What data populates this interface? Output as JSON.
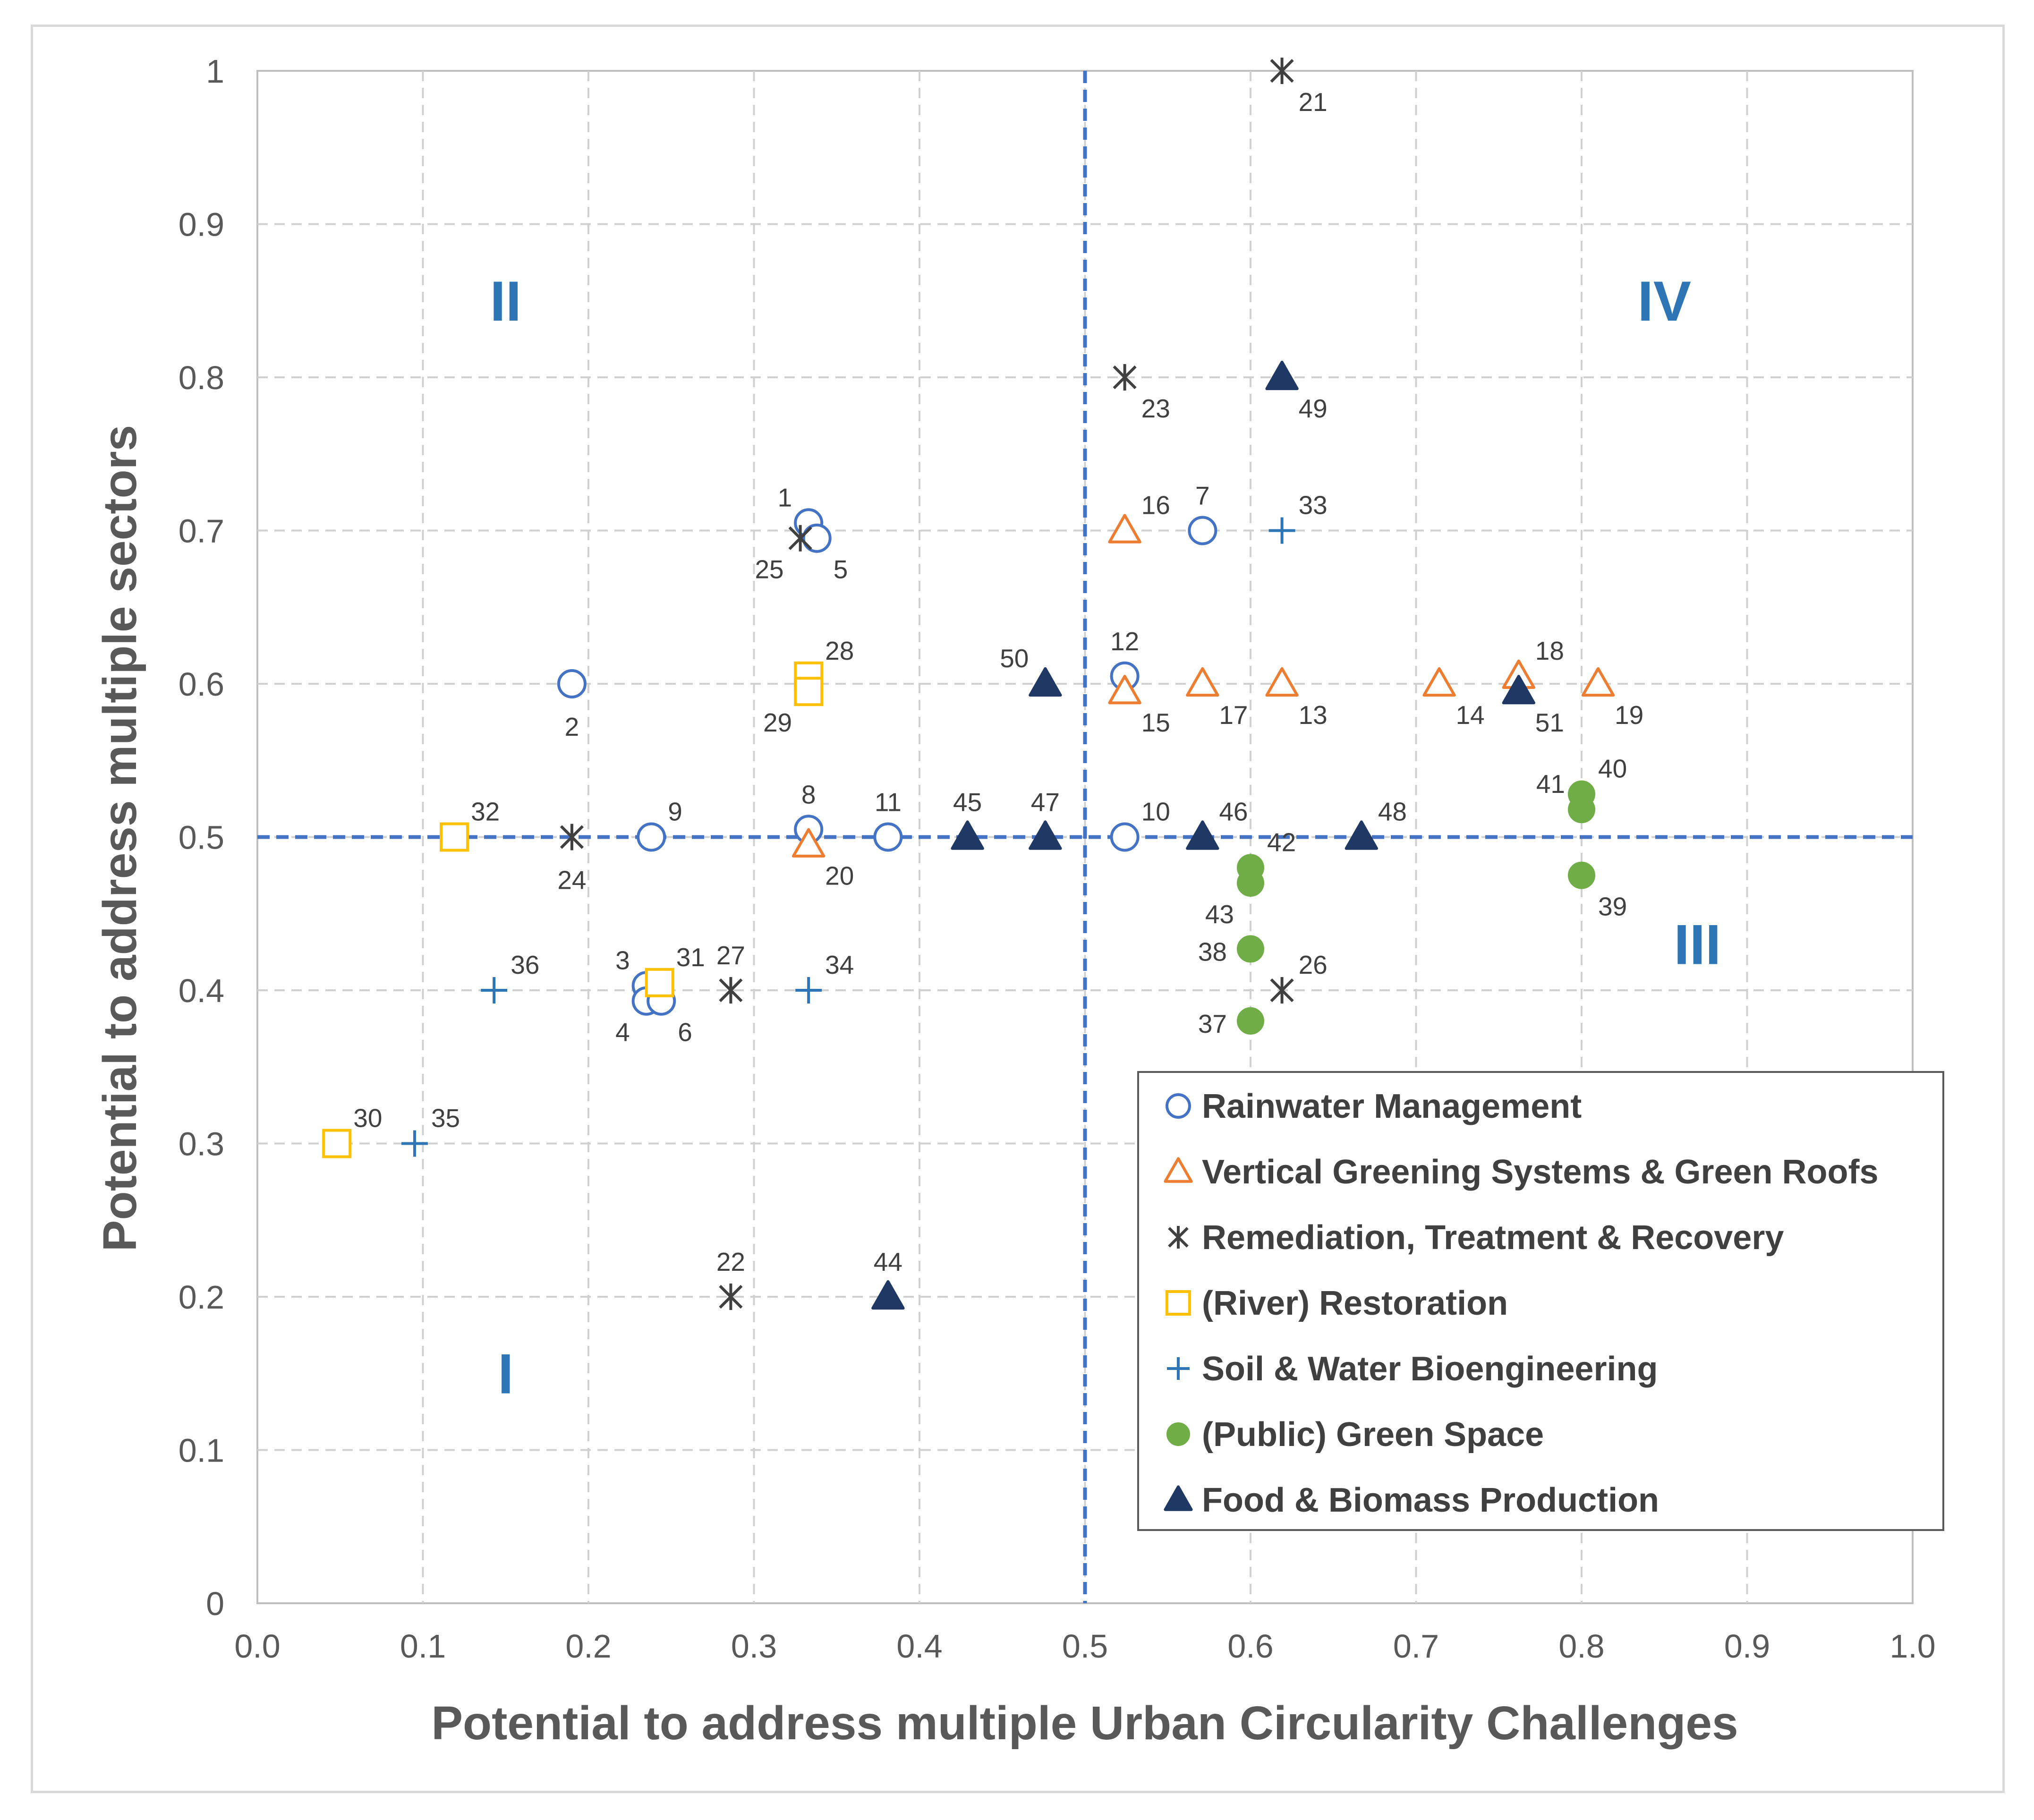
{
  "chart_data": {
    "type": "scatter",
    "title": "",
    "xlabel": "Potential to address multiple Urban Circularity Challenges",
    "ylabel": "Potential to address multiple sectors",
    "xlim": [
      0,
      1
    ],
    "ylim": [
      0,
      1
    ],
    "x_ticks": [
      "0.0",
      "0.1",
      "0.2",
      "0.3",
      "0.4",
      "0.5",
      "0.6",
      "0.7",
      "0.8",
      "0.9",
      "1.0"
    ],
    "y_ticks": [
      "0",
      "0.1",
      "0.2",
      "0.3",
      "0.4",
      "0.5",
      "0.6",
      "0.7",
      "0.8",
      "0.9",
      "1"
    ],
    "grid": true,
    "threshold_lines": {
      "x": 0.5,
      "y": 0.5
    },
    "quadrant_labels": [
      {
        "text": "I",
        "x": 0.15,
        "y": 0.15
      },
      {
        "text": "II",
        "x": 0.15,
        "y": 0.85
      },
      {
        "text": "III",
        "x": 0.87,
        "y": 0.43
      },
      {
        "text": "IV",
        "x": 0.85,
        "y": 0.85
      }
    ],
    "legend_position": "bottom-right",
    "series": [
      {
        "name": "Rainwater Management",
        "marker": "circle-open",
        "color": "#4472c4",
        "points": [
          {
            "id": "1",
            "x": 0.333,
            "y": 0.705
          },
          {
            "id": "2",
            "x": 0.19,
            "y": 0.6
          },
          {
            "id": "3",
            "x": 0.235,
            "y": 0.403
          },
          {
            "id": "4",
            "x": 0.235,
            "y": 0.393
          },
          {
            "id": "5",
            "x": 0.338,
            "y": 0.695
          },
          {
            "id": "6",
            "x": 0.244,
            "y": 0.393
          },
          {
            "id": "7",
            "x": 0.571,
            "y": 0.7
          },
          {
            "id": "8",
            "x": 0.333,
            "y": 0.505
          },
          {
            "id": "9",
            "x": 0.238,
            "y": 0.5
          },
          {
            "id": "10",
            "x": 0.524,
            "y": 0.5
          },
          {
            "id": "11",
            "x": 0.381,
            "y": 0.5
          },
          {
            "id": "12",
            "x": 0.524,
            "y": 0.605
          }
        ]
      },
      {
        "name": "Vertical Greening Systems & Green Roofs",
        "marker": "triangle-open",
        "color": "#ed7d31",
        "points": [
          {
            "id": "13",
            "x": 0.619,
            "y": 0.6
          },
          {
            "id": "14",
            "x": 0.714,
            "y": 0.6
          },
          {
            "id": "15",
            "x": 0.524,
            "y": 0.595
          },
          {
            "id": "16",
            "x": 0.524,
            "y": 0.7
          },
          {
            "id": "17",
            "x": 0.571,
            "y": 0.6
          },
          {
            "id": "18",
            "x": 0.762,
            "y": 0.605
          },
          {
            "id": "19",
            "x": 0.81,
            "y": 0.6
          },
          {
            "id": "20",
            "x": 0.333,
            "y": 0.495
          }
        ]
      },
      {
        "name": "Remediation, Treatment & Recovery",
        "marker": "star",
        "color": "#404040",
        "points": [
          {
            "id": "21",
            "x": 0.619,
            "y": 1.0
          },
          {
            "id": "22",
            "x": 0.286,
            "y": 0.2
          },
          {
            "id": "23",
            "x": 0.524,
            "y": 0.8
          },
          {
            "id": "24",
            "x": 0.19,
            "y": 0.5
          },
          {
            "id": "25",
            "x": 0.328,
            "y": 0.695
          },
          {
            "id": "26",
            "x": 0.619,
            "y": 0.4
          },
          {
            "id": "27",
            "x": 0.286,
            "y": 0.4
          }
        ]
      },
      {
        "name": "(River) Restoration",
        "marker": "square-open",
        "color": "#ffc000",
        "points": [
          {
            "id": "28",
            "x": 0.333,
            "y": 0.605
          },
          {
            "id": "29",
            "x": 0.333,
            "y": 0.595
          },
          {
            "id": "30",
            "x": 0.048,
            "y": 0.3
          },
          {
            "id": "31",
            "x": 0.243,
            "y": 0.405
          },
          {
            "id": "32",
            "x": 0.119,
            "y": 0.5
          }
        ]
      },
      {
        "name": "Soil & Water Bioengineering",
        "marker": "plus",
        "color": "#2e75b6",
        "points": [
          {
            "id": "33",
            "x": 0.619,
            "y": 0.7
          },
          {
            "id": "34",
            "x": 0.333,
            "y": 0.4
          },
          {
            "id": "35",
            "x": 0.095,
            "y": 0.3
          },
          {
            "id": "36",
            "x": 0.143,
            "y": 0.4
          }
        ]
      },
      {
        "name": "(Public) Green Space",
        "marker": "circle-filled",
        "color": "#70ad47",
        "points": [
          {
            "id": "37",
            "x": 0.6,
            "y": 0.38
          },
          {
            "id": "38",
            "x": 0.6,
            "y": 0.427
          },
          {
            "id": "39",
            "x": 0.8,
            "y": 0.475
          },
          {
            "id": "40",
            "x": 0.8,
            "y": 0.528
          },
          {
            "id": "41",
            "x": 0.8,
            "y": 0.518
          },
          {
            "id": "42",
            "x": 0.6,
            "y": 0.48
          },
          {
            "id": "43",
            "x": 0.6,
            "y": 0.47
          }
        ]
      },
      {
        "name": "Food & Biomass Production",
        "marker": "triangle-filled",
        "color": "#203864",
        "points": [
          {
            "id": "44",
            "x": 0.381,
            "y": 0.2
          },
          {
            "id": "45",
            "x": 0.429,
            "y": 0.5
          },
          {
            "id": "46",
            "x": 0.571,
            "y": 0.5
          },
          {
            "id": "47",
            "x": 0.476,
            "y": 0.5
          },
          {
            "id": "48",
            "x": 0.667,
            "y": 0.5
          },
          {
            "id": "49",
            "x": 0.619,
            "y": 0.8
          },
          {
            "id": "50",
            "x": 0.476,
            "y": 0.6
          },
          {
            "id": "51",
            "x": 0.762,
            "y": 0.595
          }
        ]
      }
    ]
  }
}
